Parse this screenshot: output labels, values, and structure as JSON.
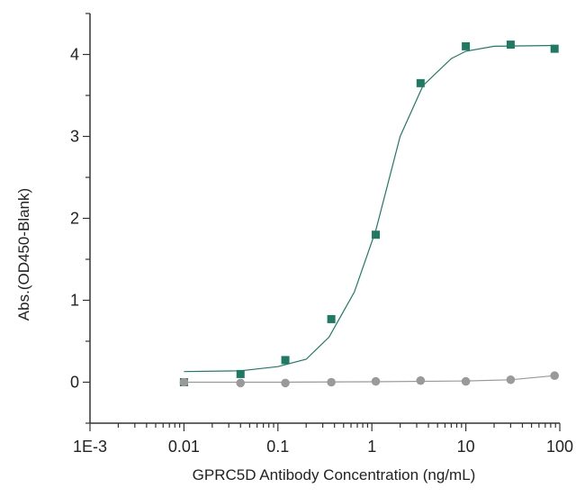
{
  "chart_data": {
    "type": "scatter",
    "xlabel": "GPRC5D Antibody Concentration (ng/mL)",
    "ylabel": "Abs.(OD450-Blank)",
    "x_scale": "log",
    "xlim": [
      0.001,
      100
    ],
    "ylim": [
      -0.5,
      4.5
    ],
    "x_ticks": [
      0.001,
      0.01,
      0.1,
      1,
      10,
      100
    ],
    "x_tick_labels": [
      "1E-3",
      "0.01",
      "0.1",
      "1",
      "10",
      "100"
    ],
    "y_ticks": [
      0,
      1,
      2,
      3,
      4
    ],
    "y_tick_labels": [
      "0",
      "1",
      "2",
      "3",
      "4"
    ],
    "grid": false,
    "legend": "none",
    "series": [
      {
        "color": "#1f7a63",
        "marker": "square",
        "x": [
          0.01,
          0.04,
          0.12,
          0.37,
          1.1,
          3.3,
          10,
          30,
          88
        ],
        "y": [
          0.0,
          0.1,
          0.27,
          0.77,
          1.8,
          3.65,
          4.1,
          4.12,
          4.07
        ],
        "fit": [
          [
            0.01,
            0.13
          ],
          [
            0.04,
            0.14
          ],
          [
            0.1,
            0.19
          ],
          [
            0.2,
            0.28
          ],
          [
            0.35,
            0.55
          ],
          [
            0.65,
            1.1
          ],
          [
            1.1,
            1.85
          ],
          [
            2.0,
            3.0
          ],
          [
            3.5,
            3.62
          ],
          [
            7,
            3.95
          ],
          [
            10,
            4.04
          ],
          [
            20,
            4.1
          ],
          [
            88,
            4.11
          ]
        ]
      },
      {
        "color": "#9a9a9a",
        "marker": "circle",
        "x": [
          0.01,
          0.04,
          0.12,
          0.37,
          1.1,
          3.3,
          10,
          30,
          88
        ],
        "y": [
          0.0,
          -0.01,
          -0.01,
          0.0,
          0.01,
          0.02,
          0.01,
          0.03,
          0.08
        ],
        "fit": [
          [
            0.01,
            0.0
          ],
          [
            0.1,
            0.0
          ],
          [
            1,
            0.005
          ],
          [
            10,
            0.015
          ],
          [
            30,
            0.03
          ],
          [
            88,
            0.08
          ]
        ]
      }
    ]
  }
}
